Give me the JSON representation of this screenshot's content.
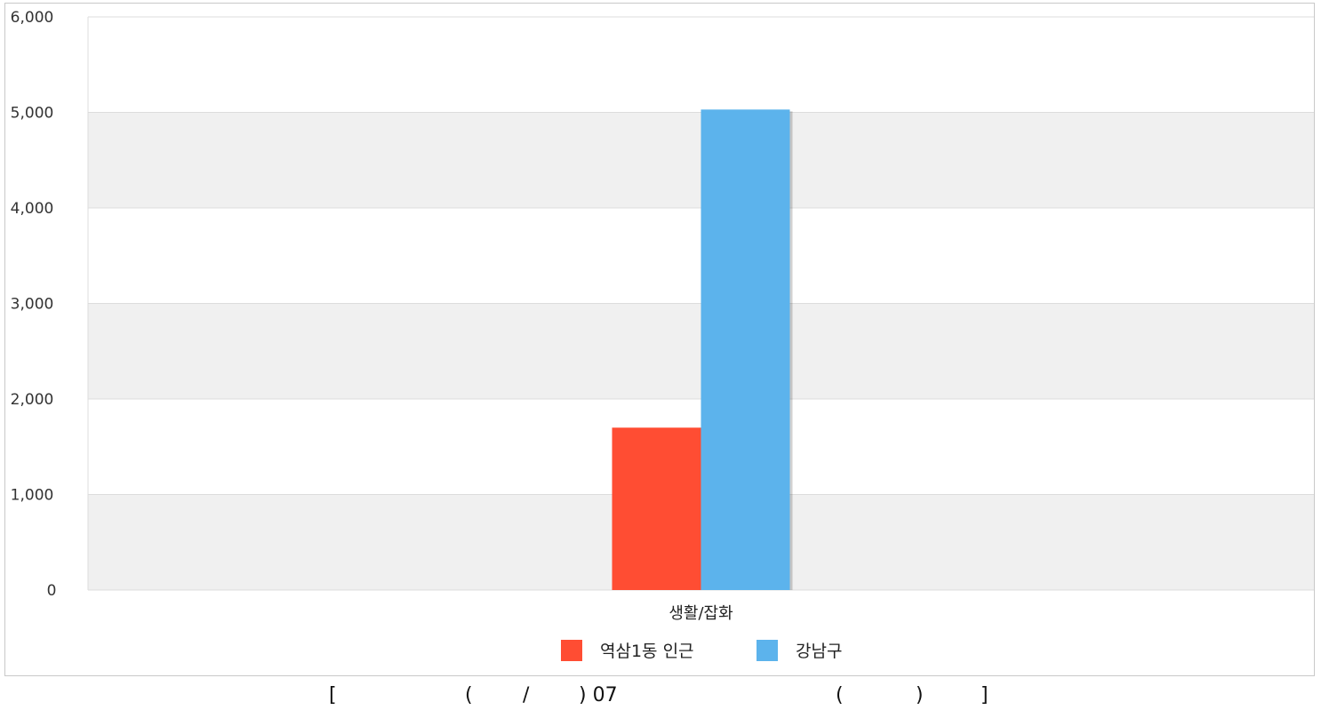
{
  "chart_data": {
    "type": "bar",
    "categories": [
      "생활/잡화"
    ],
    "series": [
      {
        "name": "역삼1동 인근",
        "values": [
          1700
        ],
        "color": "#ff4d33"
      },
      {
        "name": "강남구",
        "values": [
          5030
        ],
        "color": "#5cb3ec"
      }
    ],
    "ylim": [
      0,
      6000
    ],
    "yticks": [
      "0",
      "1,000",
      "2,000",
      "3,000",
      "4,000",
      "5,000",
      "6,000"
    ],
    "grid": true,
    "legend_position": "bottom-center",
    "title": "",
    "xlabel": "",
    "ylabel": ""
  },
  "caption": {
    "parts": [
      "[",
      "(",
      "/",
      ") 07",
      "(",
      ")",
      "]"
    ]
  }
}
